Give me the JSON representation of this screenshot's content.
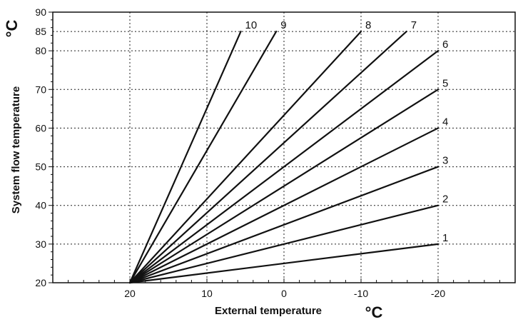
{
  "chart_data": {
    "type": "line",
    "xlabel": "External temperature",
    "ylabel": "System flow temperature",
    "x_unit": "°C",
    "y_unit": "°C",
    "x_reversed": true,
    "xlim": [
      30,
      -30
    ],
    "ylim": [
      20,
      90
    ],
    "x_ticks": [
      20,
      10,
      0,
      -10,
      -20
    ],
    "x_tick_labels": [
      "20",
      "10",
      "0",
      "-10",
      "-20"
    ],
    "y_ticks": [
      20,
      30,
      40,
      50,
      60,
      70,
      80,
      85,
      90
    ],
    "y_tick_labels": [
      "20",
      "30",
      "40",
      "50",
      "60",
      "70",
      "80",
      "85",
      "90"
    ],
    "grid": true,
    "grid_style": "dotted",
    "series": [
      {
        "name": "1",
        "x": [
          20,
          -20
        ],
        "y": [
          20,
          30
        ]
      },
      {
        "name": "2",
        "x": [
          20,
          -20
        ],
        "y": [
          20,
          40
        ]
      },
      {
        "name": "3",
        "x": [
          20,
          -20
        ],
        "y": [
          20,
          50
        ]
      },
      {
        "name": "4",
        "x": [
          20,
          -20
        ],
        "y": [
          20,
          60
        ]
      },
      {
        "name": "5",
        "x": [
          20,
          -20
        ],
        "y": [
          20,
          70
        ]
      },
      {
        "name": "6",
        "x": [
          20,
          -20
        ],
        "y": [
          20,
          80
        ]
      },
      {
        "name": "7",
        "x": [
          20,
          -15.9
        ],
        "y": [
          20,
          85
        ]
      },
      {
        "name": "8",
        "x": [
          20,
          -10
        ],
        "y": [
          20,
          85
        ]
      },
      {
        "name": "9",
        "x": [
          20,
          1
        ],
        "y": [
          20,
          85
        ]
      },
      {
        "name": "10",
        "x": [
          20,
          5.6
        ],
        "y": [
          20,
          85
        ]
      }
    ]
  }
}
